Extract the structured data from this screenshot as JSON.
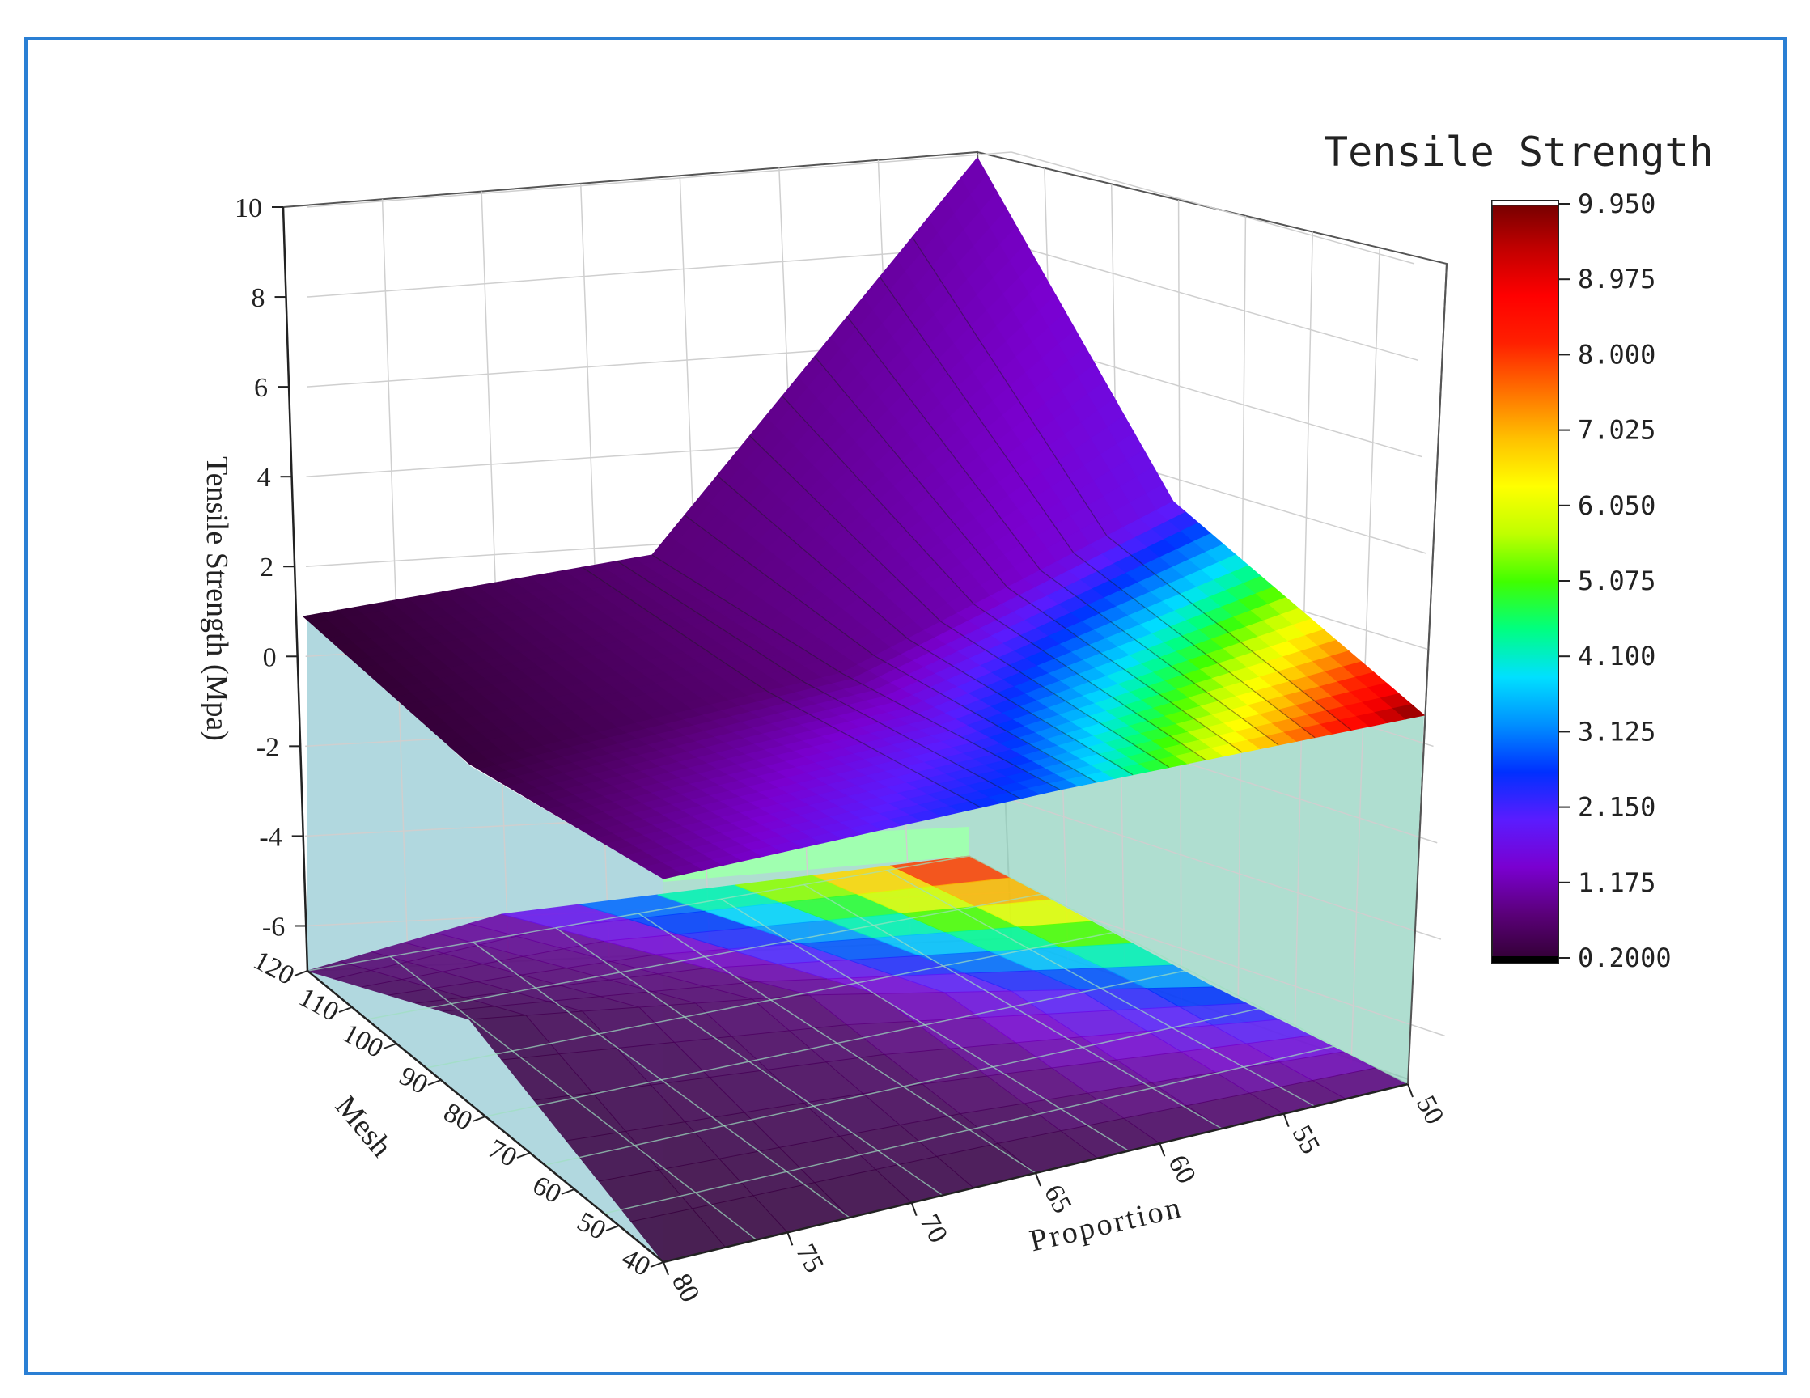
{
  "chart_data": {
    "type": "surface3d",
    "title": "",
    "zlabel": "Tensile Strength (Mpa)",
    "xlabel": "Proportion",
    "ylabel": "Mesh",
    "z_ticks": [
      "10",
      "8",
      "6",
      "4",
      "2",
      "0",
      "-2",
      "-4",
      "-6"
    ],
    "zlim": [
      -7,
      10
    ],
    "x_ticks": [
      "50",
      "55",
      "60",
      "65",
      "70",
      "75",
      "80"
    ],
    "xlim": [
      50,
      80
    ],
    "y_ticks": [
      "120",
      "110",
      "100",
      "90",
      "80",
      "70",
      "60",
      "50",
      "40"
    ],
    "ylim": [
      40,
      120
    ],
    "surface": [
      {
        "proportion": 80,
        "mesh": 40,
        "strength": 0.2
      },
      {
        "proportion": 80,
        "mesh": 80,
        "strength": 0.8
      },
      {
        "proportion": 80,
        "mesh": 120,
        "strength": 1.2
      },
      {
        "proportion": 65,
        "mesh": 40,
        "strength": 0.3
      },
      {
        "proportion": 65,
        "mesh": 80,
        "strength": 0.9
      },
      {
        "proportion": 65,
        "mesh": 120,
        "strength": 1.8
      },
      {
        "proportion": 50,
        "mesh": 40,
        "strength": 0.9
      },
      {
        "proportion": 50,
        "mesh": 80,
        "strength": 3.0
      },
      {
        "proportion": 50,
        "mesh": 120,
        "strength": 9.95
      }
    ],
    "colorbar": {
      "title": "Tensile Strength",
      "min": 0.2,
      "max": 9.95,
      "tick_labels": [
        "9.950",
        "8.975",
        "8.000",
        "7.025",
        "6.050",
        "5.075",
        "4.100",
        "3.125",
        "2.150",
        "1.175",
        "0.2000"
      ],
      "colormap": [
        "#300030",
        "#5a0078",
        "#7a00d0",
        "#5a1cff",
        "#0030ff",
        "#0090ff",
        "#00e0ff",
        "#00ff80",
        "#40ff00",
        "#c0ff00",
        "#ffff00",
        "#ffc000",
        "#ff7000",
        "#ff2000",
        "#ff0000",
        "#c00000",
        "#700000"
      ]
    },
    "wall_color": "#a8d4dc",
    "frame_color": "#2a7fd4"
  }
}
